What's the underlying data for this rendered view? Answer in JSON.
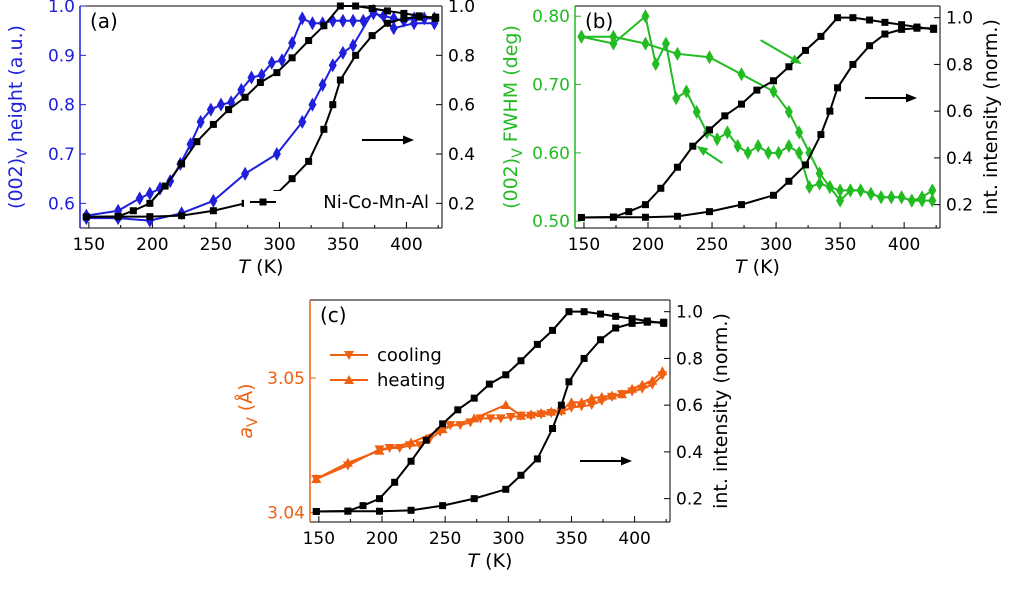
{
  "colors": {
    "blue": "#1f1fdc",
    "green": "#22bb22",
    "orange": "#f06010",
    "black": "#000000"
  },
  "chart_data": [
    {
      "panel_label": "(a)",
      "type": "line",
      "xlabel_italic": "T",
      "xlabel_unit": " (K)",
      "xlim": [
        143,
        428
      ],
      "x_ticks": [
        "150",
        "200",
        "250",
        "300",
        "350",
        "400"
      ],
      "ylabel_left": {
        "base": "(002)",
        "sub": "V",
        "rest": " height (a.u.)"
      },
      "ylim_left": [
        0.55,
        1.0
      ],
      "y_ticks_left": [
        "0.6",
        "0.7",
        "0.8",
        "0.9",
        "1.0"
      ],
      "ylim_right": [
        0.1,
        1.0
      ],
      "y_ticks_right": [
        "0.2",
        "0.4",
        "0.6",
        "0.8",
        "1.0"
      ],
      "legend": {
        "label": "Ni-Co-Mn-Al",
        "placement": "bottom-right"
      },
      "arrow_direction": "right",
      "series": [
        {
          "role": "left-axis",
          "color": "blue",
          "marker": "diamond",
          "x": [
            148,
            173,
            190,
            198,
            206,
            214,
            222,
            230,
            238,
            246,
            254,
            262,
            270,
            278,
            286,
            294,
            302,
            310,
            318,
            326,
            334,
            342,
            350,
            358,
            366,
            374,
            382,
            390,
            398,
            406,
            414,
            422
          ],
          "y": [
            0.575,
            0.585,
            0.61,
            0.62,
            0.63,
            0.645,
            0.68,
            0.72,
            0.765,
            0.79,
            0.8,
            0.805,
            0.83,
            0.855,
            0.86,
            0.885,
            0.89,
            0.925,
            0.975,
            0.965,
            0.965,
            0.97,
            0.97,
            0.97,
            0.97,
            0.985,
            0.98,
            0.975,
            0.97,
            0.975,
            0.975,
            0.975
          ]
        },
        {
          "role": "left-axis",
          "color": "blue",
          "marker": "diamond",
          "x": [
            148,
            173,
            198,
            223,
            248,
            273,
            298,
            318,
            326,
            334,
            342,
            350,
            358,
            374,
            390,
            406,
            422
          ],
          "y": [
            0.57,
            0.57,
            0.565,
            0.58,
            0.605,
            0.66,
            0.7,
            0.765,
            0.8,
            0.84,
            0.88,
            0.905,
            0.92,
            0.99,
            0.955,
            0.965,
            0.965
          ]
        },
        {
          "role": "right-axis",
          "color": "black",
          "marker": "square",
          "x": [
            148,
            173,
            185,
            198,
            210,
            223,
            235,
            248,
            260,
            273,
            285,
            298,
            310,
            323,
            335,
            348,
            360,
            373,
            385,
            398,
            410,
            423
          ],
          "y": [
            0.145,
            0.147,
            0.17,
            0.2,
            0.27,
            0.36,
            0.45,
            0.52,
            0.58,
            0.63,
            0.69,
            0.73,
            0.79,
            0.86,
            0.92,
            1.0,
            1.0,
            0.99,
            0.98,
            0.97,
            0.96,
            0.95
          ]
        },
        {
          "role": "right-axis",
          "color": "black",
          "marker": "square",
          "x": [
            148,
            173,
            198,
            223,
            248,
            273,
            298,
            310,
            323,
            335,
            342,
            348,
            360,
            373,
            385,
            398,
            410,
            423
          ],
          "y": [
            0.145,
            0.146,
            0.146,
            0.15,
            0.17,
            0.2,
            0.24,
            0.3,
            0.37,
            0.5,
            0.6,
            0.7,
            0.8,
            0.88,
            0.93,
            0.95,
            0.955,
            0.955
          ]
        }
      ]
    },
    {
      "panel_label": "(b)",
      "type": "line",
      "xlabel_italic": "T",
      "xlabel_unit": " (K)",
      "xlim": [
        143,
        428
      ],
      "x_ticks": [
        "150",
        "200",
        "250",
        "300",
        "350",
        "400"
      ],
      "ylabel_left": {
        "base": "(002)",
        "sub": "V",
        "rest": " FWHM (deg)"
      },
      "ylim_left": [
        0.49,
        0.815
      ],
      "y_ticks_left": [
        "0.50",
        "0.60",
        "0.70",
        "0.80"
      ],
      "ylabel_right": "int. intensity (norm.)",
      "ylim_right": [
        0.1,
        1.05
      ],
      "y_ticks_right": [
        "0.2",
        "0.4",
        "0.6",
        "0.8",
        "1.0"
      ],
      "arrow_direction": "right",
      "series": [
        {
          "role": "left-axis",
          "color": "green",
          "marker": "diamond",
          "x": [
            148,
            173,
            198,
            206,
            214,
            222,
            230,
            238,
            246,
            254,
            262,
            270,
            278,
            286,
            294,
            302,
            310,
            318,
            326,
            334,
            342,
            350,
            358,
            366,
            374,
            382,
            390,
            398,
            406,
            414,
            422
          ],
          "y": [
            0.77,
            0.76,
            0.8,
            0.73,
            0.76,
            0.68,
            0.69,
            0.66,
            0.63,
            0.62,
            0.63,
            0.61,
            0.6,
            0.61,
            0.6,
            0.6,
            0.61,
            0.6,
            0.55,
            0.555,
            0.55,
            0.53,
            0.545,
            0.545,
            0.54,
            0.535,
            0.535,
            0.535,
            0.53,
            0.535,
            0.545
          ]
        },
        {
          "role": "left-axis",
          "color": "green",
          "marker": "diamond",
          "x": [
            148,
            173,
            198,
            223,
            248,
            273,
            298,
            310,
            318,
            326,
            334,
            342,
            350,
            358,
            366,
            374,
            382,
            390,
            398,
            406,
            414,
            422
          ],
          "y": [
            0.77,
            0.77,
            0.76,
            0.745,
            0.74,
            0.715,
            0.69,
            0.66,
            0.63,
            0.6,
            0.57,
            0.55,
            0.545,
            0.545,
            0.545,
            0.54,
            0.535,
            0.535,
            0.535,
            0.53,
            0.53,
            0.53
          ]
        },
        {
          "role": "right-axis",
          "color": "black",
          "marker": "square",
          "x": [
            148,
            173,
            185,
            198,
            210,
            223,
            235,
            248,
            260,
            273,
            285,
            298,
            310,
            323,
            335,
            348,
            360,
            373,
            385,
            398,
            410,
            423
          ],
          "y": [
            0.145,
            0.147,
            0.17,
            0.2,
            0.27,
            0.36,
            0.45,
            0.52,
            0.58,
            0.63,
            0.69,
            0.73,
            0.79,
            0.86,
            0.92,
            1.0,
            1.0,
            0.99,
            0.98,
            0.97,
            0.96,
            0.95
          ]
        },
        {
          "role": "right-axis",
          "color": "black",
          "marker": "square",
          "x": [
            148,
            173,
            198,
            223,
            248,
            273,
            298,
            310,
            323,
            335,
            342,
            348,
            360,
            373,
            385,
            398,
            410,
            423
          ],
          "y": [
            0.145,
            0.146,
            0.146,
            0.15,
            0.17,
            0.2,
            0.24,
            0.3,
            0.37,
            0.5,
            0.6,
            0.7,
            0.8,
            0.88,
            0.93,
            0.95,
            0.955,
            0.955
          ]
        }
      ],
      "annotation_arrows": [
        {
          "x1": 288,
          "y1": 0.765,
          "x2": 320,
          "y2": 0.73
        },
        {
          "x1": 258,
          "y1": 0.585,
          "x2": 238,
          "y2": 0.61
        }
      ]
    },
    {
      "panel_label": "(c)",
      "type": "line",
      "xlabel_italic": "T",
      "xlabel_unit": " (K)",
      "xlim": [
        143,
        428
      ],
      "x_ticks": [
        "150",
        "200",
        "250",
        "300",
        "350",
        "400"
      ],
      "ylabel_left": {
        "italic": "a",
        "sub": "V",
        "rest": " (Å)"
      },
      "ylim_left": [
        3.0393,
        3.0558
      ],
      "y_ticks_left": [
        "3.04",
        "3.05"
      ],
      "ylabel_right": "int. intensity (norm.)",
      "ylim_right": [
        0.1,
        1.05
      ],
      "y_ticks_right": [
        "0.2",
        "0.4",
        "0.6",
        "0.8",
        "1.0"
      ],
      "arrow_direction": "right",
      "legend": {
        "entries": [
          "cooling",
          "heating"
        ],
        "placement": "top-left"
      },
      "series": [
        {
          "role": "left-axis",
          "name": "cooling",
          "color": "orange",
          "marker": "triangle-down",
          "x": [
            148,
            173,
            198,
            206,
            214,
            222,
            230,
            238,
            246,
            254,
            262,
            270,
            278,
            286,
            294,
            302,
            310,
            318,
            326,
            334,
            342,
            350,
            358,
            366,
            374,
            382,
            390,
            398,
            406,
            414,
            422
          ],
          "y": [
            3.0425,
            3.0435,
            3.0447,
            3.0448,
            3.0448,
            3.045,
            3.045,
            3.0455,
            3.046,
            3.0465,
            3.0465,
            3.0467,
            3.047,
            3.047,
            3.047,
            3.0471,
            3.0472,
            3.0472,
            3.0473,
            3.0474,
            3.0475,
            3.0478,
            3.0479,
            3.048,
            3.0483,
            3.0486,
            3.0488,
            3.049,
            3.0492,
            3.0495,
            3.0502
          ]
        },
        {
          "role": "left-axis",
          "name": "heating",
          "color": "orange",
          "marker": "triangle-up",
          "x": [
            148,
            173,
            198,
            223,
            248,
            273,
            298,
            310,
            318,
            326,
            334,
            342,
            350,
            358,
            366,
            374,
            382,
            390,
            398,
            406,
            414,
            422
          ],
          "y": [
            3.0425,
            3.0437,
            3.0446,
            3.0452,
            3.0462,
            3.047,
            3.048,
            3.0472,
            3.0473,
            3.0474,
            3.0475,
            3.0476,
            3.0482,
            3.0482,
            3.0485,
            3.0486,
            3.0487,
            3.0488,
            3.0492,
            3.0495,
            3.0498,
            3.0505
          ]
        },
        {
          "role": "right-axis",
          "color": "black",
          "marker": "square",
          "x": [
            148,
            173,
            185,
            198,
            210,
            223,
            235,
            248,
            260,
            273,
            285,
            298,
            310,
            323,
            335,
            348,
            360,
            373,
            385,
            398,
            410,
            423
          ],
          "y": [
            0.145,
            0.147,
            0.17,
            0.2,
            0.27,
            0.36,
            0.45,
            0.52,
            0.58,
            0.63,
            0.69,
            0.73,
            0.79,
            0.86,
            0.92,
            1.0,
            1.0,
            0.99,
            0.98,
            0.97,
            0.96,
            0.95
          ]
        },
        {
          "role": "right-axis",
          "color": "black",
          "marker": "square",
          "x": [
            148,
            173,
            198,
            223,
            248,
            273,
            298,
            310,
            323,
            335,
            342,
            348,
            360,
            373,
            385,
            398,
            410,
            423
          ],
          "y": [
            0.145,
            0.146,
            0.146,
            0.15,
            0.17,
            0.2,
            0.24,
            0.3,
            0.37,
            0.5,
            0.6,
            0.7,
            0.8,
            0.88,
            0.93,
            0.95,
            0.955,
            0.955
          ]
        }
      ]
    }
  ]
}
